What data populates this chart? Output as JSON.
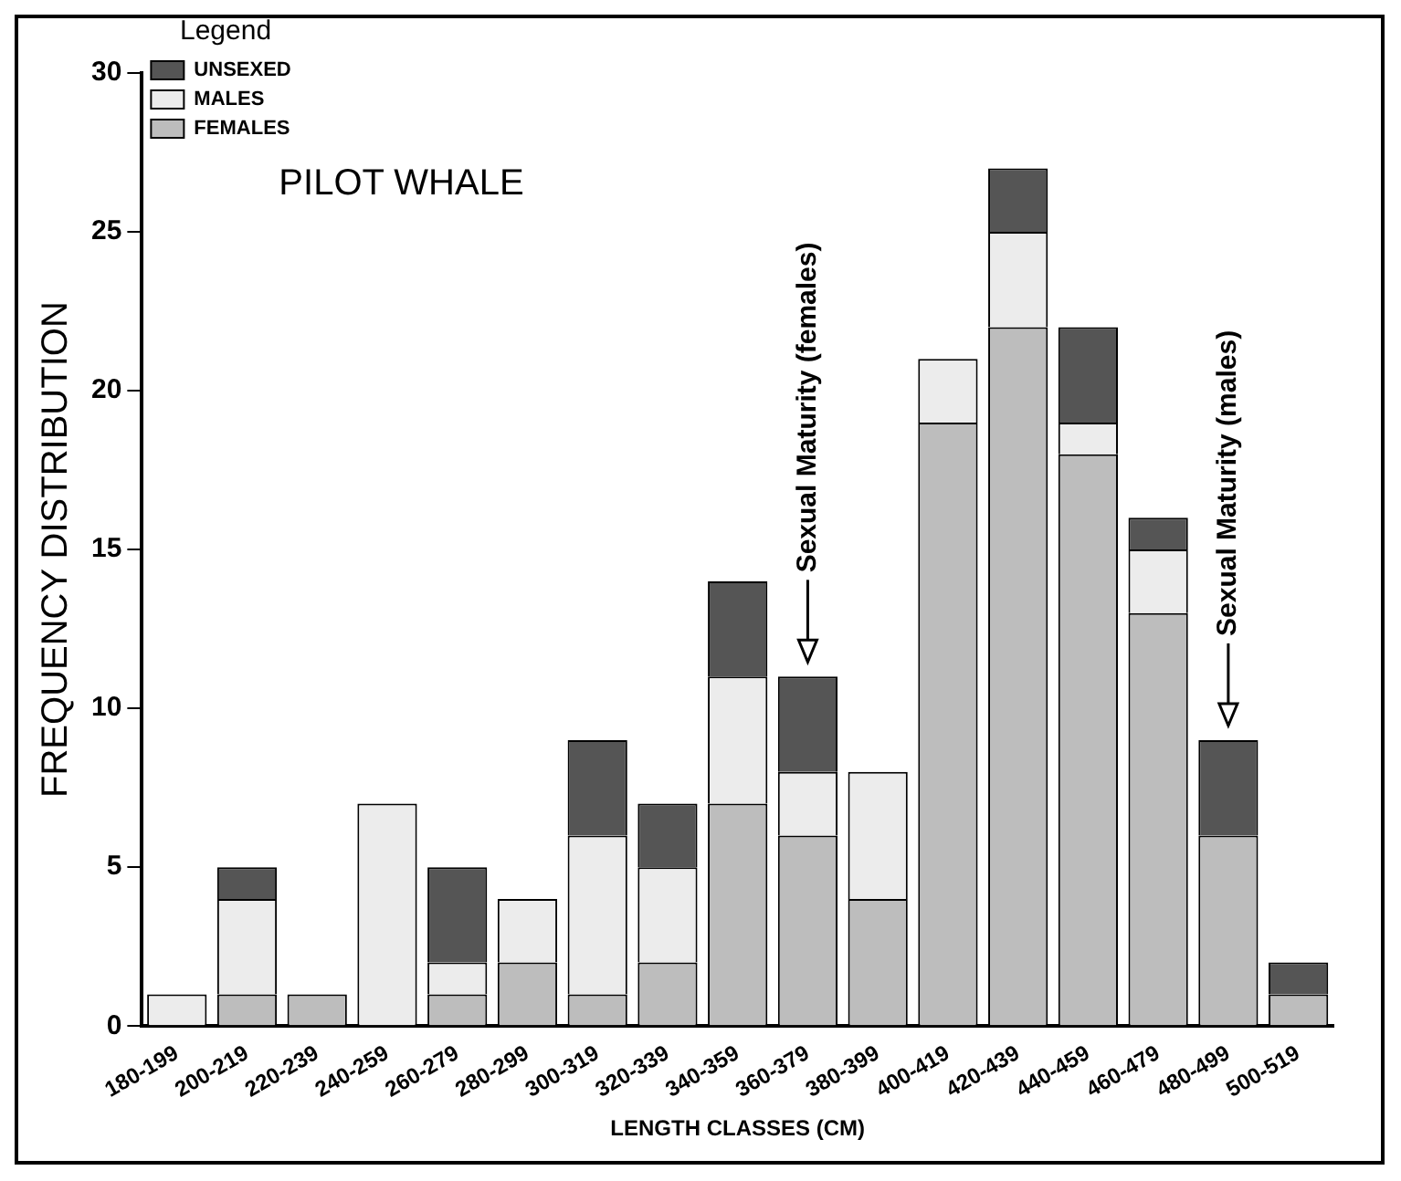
{
  "chart_data": {
    "type": "bar",
    "title": "PILOT WHALE",
    "xlabel": "LENGTH CLASSES (CM)",
    "ylabel": "FREQUENCY DISTRIBUTION",
    "legend_title": "Legend",
    "categories": [
      "180-199",
      "200-219",
      "220-239",
      "240-259",
      "260-279",
      "280-299",
      "300-319",
      "320-339",
      "340-359",
      "360-379",
      "380-399",
      "400-419",
      "420-439",
      "440-459",
      "460-479",
      "480-499",
      "500-519"
    ],
    "stacked": true,
    "series": [
      {
        "name": "FEMALES",
        "color": "#bdbdbd",
        "values": [
          0,
          1,
          1,
          0,
          1,
          2,
          1,
          2,
          7,
          6,
          4,
          19,
          22,
          18,
          13,
          6,
          1
        ]
      },
      {
        "name": "MALES",
        "color": "#ececec",
        "values": [
          1,
          3,
          0,
          7,
          1,
          2,
          5,
          3,
          4,
          2,
          4,
          2,
          3,
          1,
          2,
          0,
          0
        ]
      },
      {
        "name": "UNSEXED",
        "color": "#555555",
        "values": [
          0,
          1,
          0,
          0,
          3,
          0,
          3,
          2,
          3,
          3,
          0,
          0,
          2,
          3,
          1,
          3,
          1
        ]
      }
    ],
    "ylim": [
      0,
      30
    ],
    "yticks": [
      0,
      5,
      10,
      15,
      20,
      25,
      30
    ],
    "grid": false,
    "legend": "top left",
    "annotations": [
      {
        "text": "Sexual Maturity (females)",
        "x": "360-379",
        "y": 11
      },
      {
        "text": "Sexual Maturity (males)",
        "x": "480-499",
        "y": 9
      }
    ]
  }
}
